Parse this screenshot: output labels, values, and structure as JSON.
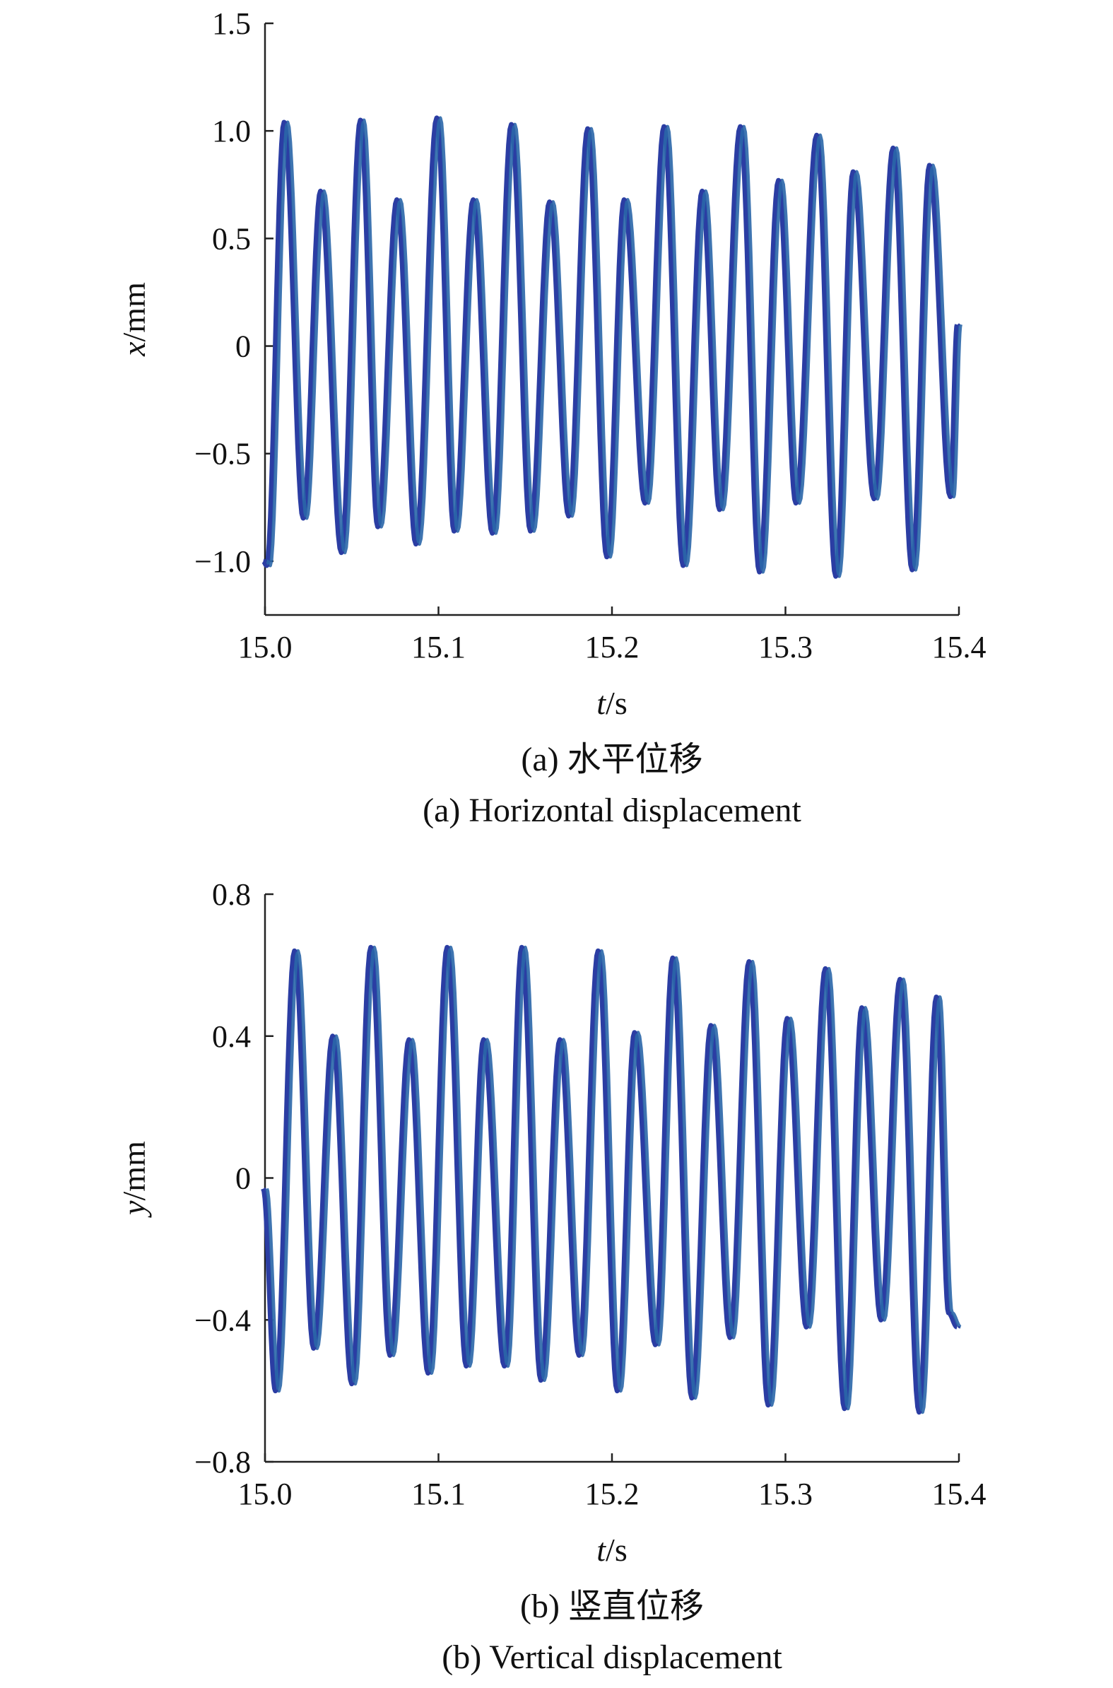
{
  "chart_data": [
    {
      "type": "line",
      "xlabel_italic": "t",
      "xlabel_unit": "/s",
      "ylabel_italic": "x",
      "ylabel_unit": "/mm",
      "xlim": [
        15.0,
        15.4
      ],
      "ylim": [
        -1.25,
        1.5
      ],
      "xticks": [
        "15.0",
        "15.1",
        "15.2",
        "15.3",
        "15.4"
      ],
      "xtick_values": [
        15.0,
        15.1,
        15.2,
        15.3,
        15.4
      ],
      "yticks": [
        "1.5",
        "1.0",
        "0.5",
        "0",
        "−0.5",
        "−1.0"
      ],
      "ytick_values": [
        1.5,
        1.0,
        0.5,
        0,
        -0.5,
        -1.0
      ],
      "caption_cn": "(a) 水平位移",
      "caption_en": "(a) Horizontal displacement",
      "series_colors": [
        "#2b3da3",
        "#2a66a8"
      ],
      "start": {
        "t": 15.0,
        "value": -1.0
      },
      "end": {
        "t": 15.4,
        "value": 0.1
      },
      "peaks": [
        {
          "t": 15.012,
          "value": 1.04
        },
        {
          "t": 15.033,
          "value": 0.72
        },
        {
          "t": 15.056,
          "value": 1.05
        },
        {
          "t": 15.077,
          "value": 0.68
        },
        {
          "t": 15.1,
          "value": 1.06
        },
        {
          "t": 15.121,
          "value": 0.68
        },
        {
          "t": 15.143,
          "value": 1.03
        },
        {
          "t": 15.165,
          "value": 0.67
        },
        {
          "t": 15.187,
          "value": 1.01
        },
        {
          "t": 15.208,
          "value": 0.68
        },
        {
          "t": 15.231,
          "value": 1.02
        },
        {
          "t": 15.253,
          "value": 0.72
        },
        {
          "t": 15.275,
          "value": 1.02
        },
        {
          "t": 15.297,
          "value": 0.77
        },
        {
          "t": 15.319,
          "value": 0.98
        },
        {
          "t": 15.34,
          "value": 0.81
        },
        {
          "t": 15.363,
          "value": 0.92
        },
        {
          "t": 15.384,
          "value": 0.84
        }
      ],
      "troughs": [
        {
          "t": 15.002,
          "value": -1.02
        },
        {
          "t": 15.023,
          "value": -0.8
        },
        {
          "t": 15.045,
          "value": -0.96
        },
        {
          "t": 15.066,
          "value": -0.84
        },
        {
          "t": 15.088,
          "value": -0.92
        },
        {
          "t": 15.11,
          "value": -0.86
        },
        {
          "t": 15.132,
          "value": -0.87
        },
        {
          "t": 15.154,
          "value": -0.86
        },
        {
          "t": 15.176,
          "value": -0.79
        },
        {
          "t": 15.198,
          "value": -0.98
        },
        {
          "t": 15.22,
          "value": -0.73
        },
        {
          "t": 15.242,
          "value": -1.02
        },
        {
          "t": 15.263,
          "value": -0.76
        },
        {
          "t": 15.286,
          "value": -1.05
        },
        {
          "t": 15.307,
          "value": -0.73
        },
        {
          "t": 15.33,
          "value": -1.07
        },
        {
          "t": 15.352,
          "value": -0.71
        },
        {
          "t": 15.374,
          "value": -1.04
        },
        {
          "t": 15.396,
          "value": -0.7
        }
      ]
    },
    {
      "type": "line",
      "xlabel_italic": "t",
      "xlabel_unit": "/s",
      "ylabel_italic": "y",
      "ylabel_unit": "/mm",
      "xlim": [
        15.0,
        15.4
      ],
      "ylim": [
        -0.8,
        0.8
      ],
      "xticks": [
        "15.0",
        "15.1",
        "15.2",
        "15.3",
        "15.4"
      ],
      "xtick_values": [
        15.0,
        15.1,
        15.2,
        15.3,
        15.4
      ],
      "yticks": [
        "0.8",
        "0.4",
        "0",
        "−0.4",
        "−0.8"
      ],
      "ytick_values": [
        0.8,
        0.4,
        0,
        -0.4,
        -0.8
      ],
      "caption_cn": "(b) 竖直位移",
      "caption_en": "(b) Vertical displacement",
      "series_colors": [
        "#2b3da3",
        "#2a66a8"
      ],
      "start": {
        "t": 15.0,
        "value": -0.03
      },
      "end": {
        "t": 15.4,
        "value": -0.42
      },
      "peaks": [
        {
          "t": 15.018,
          "value": 0.64
        },
        {
          "t": 15.04,
          "value": 0.4
        },
        {
          "t": 15.062,
          "value": 0.65
        },
        {
          "t": 15.084,
          "value": 0.39
        },
        {
          "t": 15.106,
          "value": 0.65
        },
        {
          "t": 15.127,
          "value": 0.39
        },
        {
          "t": 15.149,
          "value": 0.65
        },
        {
          "t": 15.171,
          "value": 0.39
        },
        {
          "t": 15.193,
          "value": 0.64
        },
        {
          "t": 15.214,
          "value": 0.41
        },
        {
          "t": 15.236,
          "value": 0.62
        },
        {
          "t": 15.258,
          "value": 0.43
        },
        {
          "t": 15.28,
          "value": 0.61
        },
        {
          "t": 15.302,
          "value": 0.45
        },
        {
          "t": 15.324,
          "value": 0.59
        },
        {
          "t": 15.345,
          "value": 0.48
        },
        {
          "t": 15.367,
          "value": 0.56
        },
        {
          "t": 15.388,
          "value": 0.51
        }
      ],
      "troughs": [
        {
          "t": 15.007,
          "value": -0.6
        },
        {
          "t": 15.029,
          "value": -0.48
        },
        {
          "t": 15.051,
          "value": -0.58
        },
        {
          "t": 15.073,
          "value": -0.5
        },
        {
          "t": 15.095,
          "value": -0.55
        },
        {
          "t": 15.117,
          "value": -0.53
        },
        {
          "t": 15.139,
          "value": -0.53
        },
        {
          "t": 15.16,
          "value": -0.57
        },
        {
          "t": 15.182,
          "value": -0.5
        },
        {
          "t": 15.204,
          "value": -0.6
        },
        {
          "t": 15.226,
          "value": -0.47
        },
        {
          "t": 15.247,
          "value": -0.62
        },
        {
          "t": 15.269,
          "value": -0.45
        },
        {
          "t": 15.291,
          "value": -0.64
        },
        {
          "t": 15.313,
          "value": -0.42
        },
        {
          "t": 15.335,
          "value": -0.65
        },
        {
          "t": 15.356,
          "value": -0.4
        },
        {
          "t": 15.378,
          "value": -0.66
        },
        {
          "t": 15.395,
          "value": -0.38
        }
      ]
    }
  ]
}
